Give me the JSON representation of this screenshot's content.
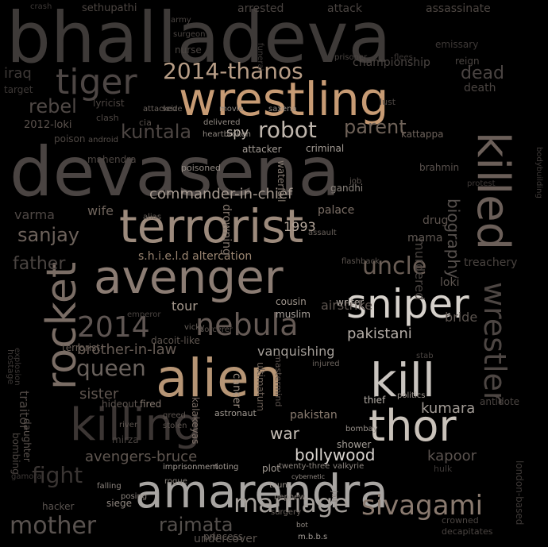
{
  "image": {
    "background_color": "#000000",
    "words": [
      {
        "text": "bhalladeva",
        "color": "#3e3a38"
      },
      {
        "text": "devasena",
        "color": "#4a4442"
      },
      {
        "text": "wrestling",
        "color": "#c79b74"
      },
      {
        "text": "terrorist",
        "color": "#9c8a7c"
      },
      {
        "text": "avenger",
        "color": "#8b7c73"
      },
      {
        "text": "alien",
        "color": "#b69575"
      },
      {
        "text": "kill",
        "color": "#c9c4bf"
      },
      {
        "text": "killing",
        "color": "#3c3634"
      },
      {
        "text": "amarendra",
        "color": "#a8a5a2"
      },
      {
        "text": "thor",
        "color": "#c9c2ba"
      },
      {
        "text": "sniper",
        "color": "#d6d1cb"
      },
      {
        "text": "rocket",
        "color": "#7a6d65"
      },
      {
        "text": "2014-thanos",
        "color": "#b79d86"
      },
      {
        "text": "tiger",
        "color": "#4d4644"
      },
      {
        "text": "robot",
        "color": "#bfb6ad"
      },
      {
        "text": "nebula",
        "color": "#655a55"
      },
      {
        "text": "2014",
        "color": "#5e5552"
      },
      {
        "text": "mother",
        "color": "#5a5350"
      },
      {
        "text": "marriage",
        "color": "#a39e99"
      },
      {
        "text": "sivagami",
        "color": "#8a7a6f"
      },
      {
        "text": "killed",
        "color": "#6b5f59"
      },
      {
        "text": "wrestler",
        "color": "#4d4643"
      },
      {
        "text": "biography",
        "color": "#56504d"
      },
      {
        "text": "uncle",
        "color": "#6a5d55"
      },
      {
        "text": "sanjay",
        "color": "#6d625b"
      },
      {
        "text": "father",
        "color": "#4a4441"
      },
      {
        "text": "rebel",
        "color": "#4f4845"
      },
      {
        "text": "kuntala",
        "color": "#4c4542"
      },
      {
        "text": "parent",
        "color": "#6f6258"
      },
      {
        "text": "dead",
        "color": "#4a4442"
      },
      {
        "text": "iraq",
        "color": "#3d3836"
      },
      {
        "text": "queen",
        "color": "#6a625d"
      },
      {
        "text": "fight",
        "color": "#3a3533"
      },
      {
        "text": "kapoor",
        "color": "#5b534f"
      },
      {
        "text": "bollywood",
        "color": "#d8d3ce"
      },
      {
        "text": "war",
        "color": "#c7bfb7"
      },
      {
        "text": "pakistan",
        "color": "#8a7c70"
      },
      {
        "text": "rajmata",
        "color": "#55504d"
      },
      {
        "text": "commander-in-chief",
        "color": "#a89c92"
      },
      {
        "text": "s.h.i.e.l.d altercation",
        "color": "#9a8571"
      },
      {
        "text": "avengers-bruce",
        "color": "#5f5650"
      },
      {
        "text": "brother-in-law",
        "color": "#675c55"
      },
      {
        "text": "kumara",
        "color": "#a29b95"
      },
      {
        "text": "pakistani",
        "color": "#b3aca6"
      },
      {
        "text": "vanquishing",
        "color": "#a49e98"
      },
      {
        "text": "tour",
        "color": "#a79a8e"
      },
      {
        "text": "airstrike",
        "color": "#5e5550"
      },
      {
        "text": "murdered",
        "color": "#4a4441"
      },
      {
        "text": "varma",
        "color": "#4e4744"
      },
      {
        "text": "wife",
        "color": "#6f645c"
      },
      {
        "text": "sister",
        "color": "#605650"
      },
      {
        "text": "palace",
        "color": "#7c6f66"
      },
      {
        "text": "drowning",
        "color": "#85786e"
      },
      {
        "text": "spy",
        "color": "#c2b9b0"
      },
      {
        "text": "attacker",
        "color": "#a59d96"
      },
      {
        "text": "criminal",
        "color": "#a49c95"
      },
      {
        "text": "cancer",
        "color": "#9d8f83"
      },
      {
        "text": "ultimatum",
        "color": "#6a5e55"
      },
      {
        "text": "mastermind",
        "color": "#5a514c"
      },
      {
        "text": "astronaut",
        "color": "#a09991"
      },
      {
        "text": "kalakeyas",
        "color": "#7c6f66"
      },
      {
        "text": "poisoned",
        "color": "#928a83"
      },
      {
        "text": "1993",
        "color": "#b6a89c"
      },
      {
        "text": "cousin",
        "color": "#9f958c"
      },
      {
        "text": "muslim",
        "color": "#a8a09a"
      },
      {
        "text": "writer",
        "color": "#a8a09a"
      },
      {
        "text": "thief",
        "color": "#b7b0a9"
      },
      {
        "text": "politics",
        "color": "#9a928b"
      },
      {
        "text": "shower",
        "color": "#a69f98"
      },
      {
        "text": "bombay",
        "color": "#948d87"
      },
      {
        "text": "traitor",
        "color": "#4f4844"
      },
      {
        "text": "hideout",
        "color": "#5f5651"
      },
      {
        "text": "fired",
        "color": "#867a71"
      },
      {
        "text": "siege",
        "color": "#908780"
      },
      {
        "text": "plot",
        "color": "#a29a93"
      },
      {
        "text": "twenty-three",
        "color": "#8d857e"
      },
      {
        "text": "valkyrie",
        "color": "#8e8680"
      },
      {
        "text": "princess",
        "color": "#5f5853"
      },
      {
        "text": "m.b.b.s",
        "color": "#a39c96"
      },
      {
        "text": "taunt",
        "color": "#a39b94"
      },
      {
        "text": "nephew",
        "color": "#8f8780"
      },
      {
        "text": "surgery",
        "color": "#6d655f"
      },
      {
        "text": "imprisonment",
        "color": "#a39b94"
      },
      {
        "text": "rioting",
        "color": "#a39b94"
      },
      {
        "text": "cybernetic",
        "color": "#908882"
      },
      {
        "text": "jail",
        "color": "#8a827c"
      },
      {
        "text": "bot",
        "color": "#8f8781"
      },
      {
        "text": "undercover",
        "color": "#5a534e"
      },
      {
        "text": "falling",
        "color": "#8c847e"
      },
      {
        "text": "posing",
        "color": "#8c847e"
      },
      {
        "text": "bombing",
        "color": "#4f4844"
      },
      {
        "text": "daughter",
        "color": "#5c544f"
      },
      {
        "text": "hacker",
        "color": "#5a534f"
      },
      {
        "text": "dacoit-like",
        "color": "#5f5650"
      },
      {
        "text": "brahmin",
        "color": "#5a524e"
      },
      {
        "text": "kattappa",
        "color": "#6d625b"
      },
      {
        "text": "drug",
        "color": "#5c534e"
      },
      {
        "text": "mama",
        "color": "#5f5752"
      },
      {
        "text": "loki",
        "color": "#5c544f"
      },
      {
        "text": "bride",
        "color": "#5c544f"
      },
      {
        "text": "treachery",
        "color": "#4a4440"
      },
      {
        "text": "terrorist-",
        "color": "#6b6058"
      },
      {
        "text": "2012-loki",
        "color": "#5c534e"
      },
      {
        "text": "lyricist",
        "color": "#4d4642"
      },
      {
        "text": "poison",
        "color": "#4d4642"
      },
      {
        "text": "android",
        "color": "#554e4a"
      },
      {
        "text": "cia",
        "color": "#5a524d"
      },
      {
        "text": "clash",
        "color": "#4f4844"
      },
      {
        "text": "mahendra",
        "color": "#4d4642"
      },
      {
        "text": "gandhi",
        "color": "#8a837c"
      },
      {
        "text": "waterfall",
        "color": "#857a71"
      },
      {
        "text": "sethupathi",
        "color": "#4d4642"
      },
      {
        "text": "arrested",
        "color": "#4a4441"
      },
      {
        "text": "attack",
        "color": "#4a4441"
      },
      {
        "text": "assassinate",
        "color": "#4d4642"
      },
      {
        "text": "army",
        "color": "#4a4441"
      },
      {
        "text": "surgeon",
        "color": "#4a4441"
      },
      {
        "text": "nurse",
        "color": "#4a4441"
      },
      {
        "text": "championship",
        "color": "#4a4441"
      },
      {
        "text": "reign",
        "color": "#4a4441"
      },
      {
        "text": "prisoner",
        "color": "#4a4441"
      },
      {
        "text": "target",
        "color": "#3d3836"
      },
      {
        "text": "death",
        "color": "#4a4441"
      },
      {
        "text": "lust",
        "color": "#4a4441"
      },
      {
        "text": "funeral",
        "color": "#3d3836"
      },
      {
        "text": "flees",
        "color": "#3d3836"
      },
      {
        "text": "movie",
        "color": "#8f8780"
      },
      {
        "text": "saxena",
        "color": "#908881"
      },
      {
        "text": "delivered",
        "color": "#908881"
      },
      {
        "text": "heartbroken",
        "color": "#908881"
      },
      {
        "text": "attacked",
        "color": "#6a625c"
      },
      {
        "text": "seize",
        "color": "#6a625c"
      },
      {
        "text": "emissary",
        "color": "#3d3836"
      },
      {
        "text": "crash",
        "color": "#3d3836"
      },
      {
        "text": "mirza",
        "color": "#4a4441"
      },
      {
        "text": "rogue",
        "color": "#8a837c"
      },
      {
        "text": "stolen",
        "color": "#5c544f"
      },
      {
        "text": "greed",
        "color": "#5c544f"
      },
      {
        "text": "river",
        "color": "#5c544f"
      },
      {
        "text": "decapitates",
        "color": "#4a4441"
      },
      {
        "text": "crowned",
        "color": "#4a4441"
      },
      {
        "text": "london-based",
        "color": "#3d3836"
      },
      {
        "text": "hulk",
        "color": "#3d3836"
      },
      {
        "text": "vicky",
        "color": "#6a625c"
      },
      {
        "text": "sorcerer",
        "color": "#5c544f"
      },
      {
        "text": "emperor",
        "color": "#4a4441"
      },
      {
        "text": "injured",
        "color": "#6a625c"
      },
      {
        "text": "bodybuilding",
        "color": "#3d3836"
      },
      {
        "text": "antidote",
        "color": "#4a4441"
      },
      {
        "text": "stab",
        "color": "#4a4441"
      },
      {
        "text": "explosion",
        "color": "#3d3836"
      },
      {
        "text": "hostage",
        "color": "#3d3836"
      },
      {
        "text": "alias",
        "color": "#6a625c"
      },
      {
        "text": "assault",
        "color": "#6a625c"
      },
      {
        "text": "flashback",
        "color": "#5c544f"
      },
      {
        "text": "job",
        "color": "#5c544f"
      },
      {
        "text": "protest",
        "color": "#3d3836"
      },
      {
        "text": "gamora",
        "color": "#3d3836"
      }
    ]
  }
}
